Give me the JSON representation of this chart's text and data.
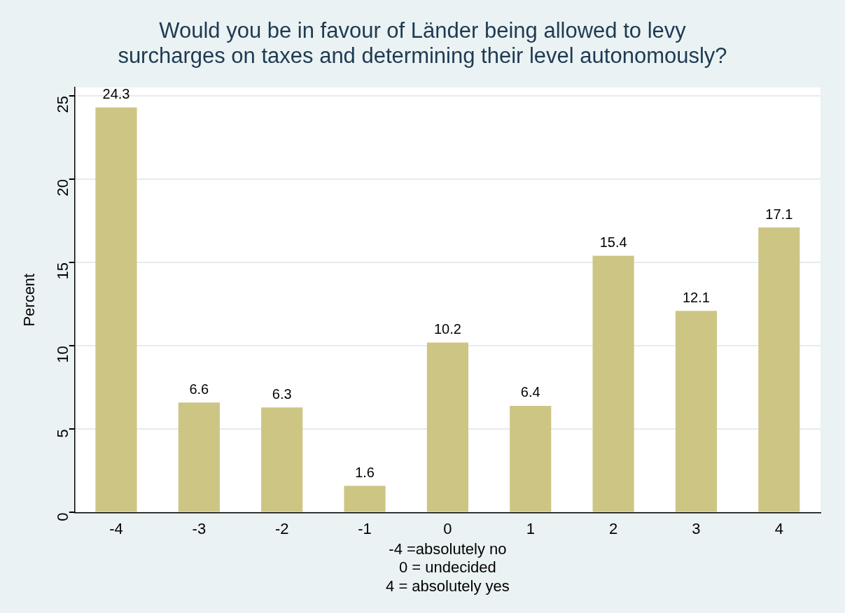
{
  "chart_data": {
    "type": "bar",
    "title": "Would you be in favour of Länder being allowed to levy surcharges on taxes and determining their level autonomously?",
    "xlabel": "-4 =absolutely no\n0 = undecided\n4 = absolutely yes",
    "ylabel": "Percent",
    "categories": [
      "-4",
      "-3",
      "-2",
      "-1",
      "0",
      "1",
      "2",
      "3",
      "4"
    ],
    "values": [
      24.3,
      6.6,
      6.3,
      1.6,
      10.2,
      6.4,
      15.4,
      12.1,
      17.1
    ],
    "color": "#cdc584",
    "ylim": [
      0,
      25.5
    ],
    "yticks": [
      0,
      5,
      10,
      15,
      20,
      25
    ],
    "grid": "y",
    "data_labels": true,
    "legend": false
  }
}
